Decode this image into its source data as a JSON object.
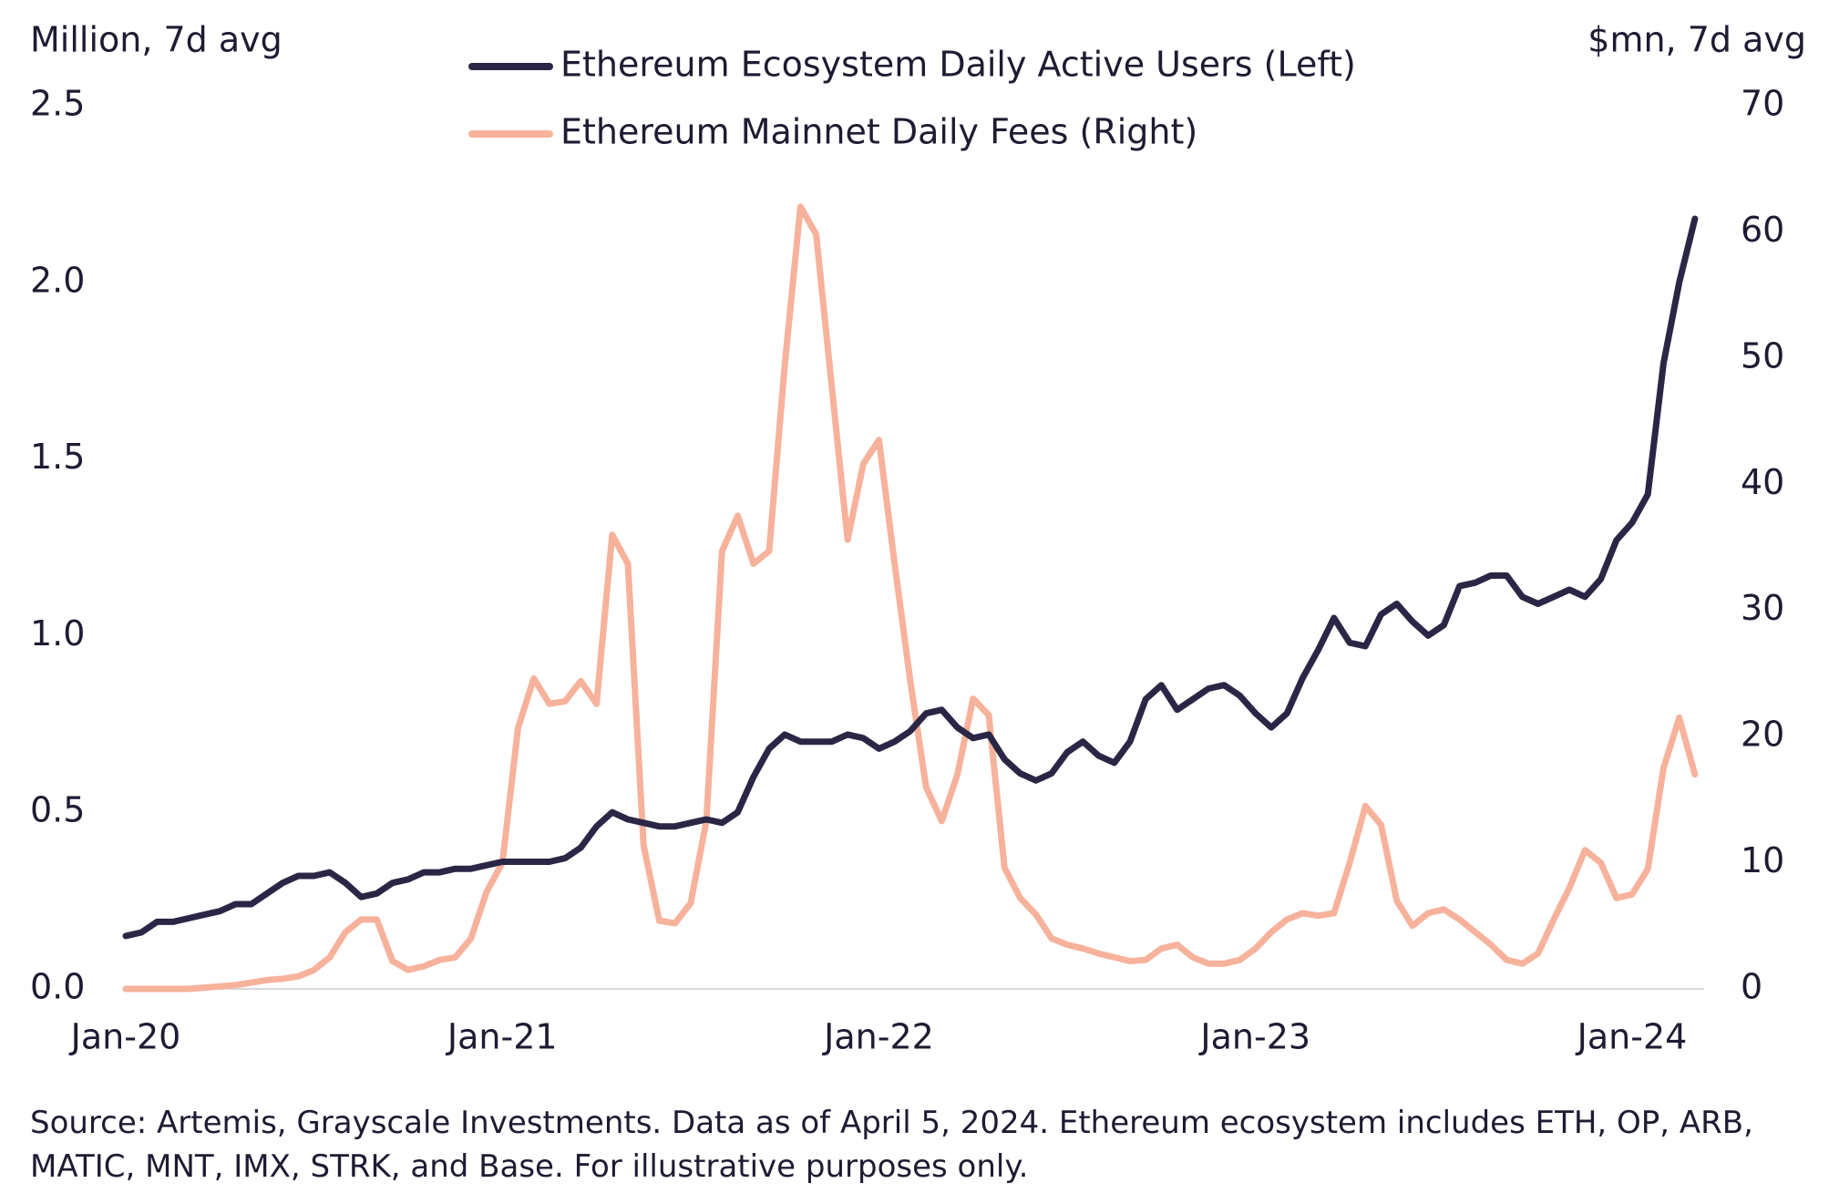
{
  "chart_data": {
    "type": "line",
    "y_label": "Million, 7d avg",
    "y2_label": "$mn, 7d avg",
    "note": "Source: Artemis, Grayscale Investments. Data as of April 5, 2024. Ethereum ecosystem includes ETH, OP, ARB, MATIC, MNT, IMX, STRK, and Base. For illustrative purposes only.",
    "categories": [
      "Jan-20",
      null,
      null,
      null,
      null,
      null,
      null,
      null,
      null,
      null,
      null,
      null,
      null,
      null,
      null,
      null,
      null,
      null,
      null,
      null,
      null,
      null,
      null,
      null,
      "Jan-21",
      null,
      null,
      null,
      null,
      null,
      null,
      null,
      null,
      null,
      null,
      null,
      null,
      null,
      null,
      null,
      null,
      null,
      null,
      null,
      null,
      null,
      null,
      null,
      "Jan-22",
      null,
      null,
      null,
      null,
      null,
      null,
      null,
      null,
      null,
      null,
      null,
      null,
      null,
      null,
      null,
      null,
      null,
      null,
      null,
      null,
      null,
      null,
      null,
      "Jan-23",
      null,
      null,
      null,
      null,
      null,
      null,
      null,
      null,
      null,
      null,
      null,
      null,
      null,
      null,
      null,
      null,
      null,
      null,
      null,
      null,
      null,
      null,
      null,
      "Jan-24",
      null,
      null,
      null,
      null
    ],
    "ylim": [
      0,
      2.5
    ],
    "yticks": [
      {
        "value": 0,
        "label": "0.0"
      },
      0.5,
      {
        "value": 1,
        "label": "1.0"
      },
      1.5,
      {
        "value": 2,
        "label": "2.0"
      },
      2.5
    ],
    "y2lim": [
      0,
      70
    ],
    "y2ticks": [
      0,
      10,
      20,
      30,
      40,
      50,
      60,
      70
    ],
    "series": [
      {
        "name": "Ethereum Ecosystem Daily Active Users (Left)",
        "color": "#2a2645",
        "values": [
          0.15,
          0.16,
          0.19,
          0.19,
          0.2,
          0.21,
          0.22,
          0.24,
          0.24,
          0.27,
          0.3,
          0.32,
          0.32,
          0.33,
          0.3,
          0.26,
          0.27,
          0.3,
          0.31,
          0.33,
          0.33,
          0.34,
          0.34,
          0.35,
          0.36,
          0.36,
          0.36,
          0.36,
          0.37,
          0.4,
          0.46,
          0.5,
          0.48,
          0.47,
          0.46,
          0.46,
          0.47,
          0.48,
          0.47,
          0.5,
          0.6,
          0.68,
          0.72,
          0.7,
          0.7,
          0.7,
          0.72,
          0.71,
          0.68,
          0.7,
          0.73,
          0.78,
          0.79,
          0.74,
          0.71,
          0.72,
          0.65,
          0.61,
          0.59,
          0.61,
          0.67,
          0.7,
          0.66,
          0.64,
          0.7,
          0.82,
          0.86,
          0.79,
          0.82,
          0.85,
          0.86,
          0.83,
          0.78,
          0.74,
          0.78,
          0.88,
          0.96,
          1.05,
          0.98,
          0.97,
          1.06,
          1.09,
          1.04,
          1.0,
          1.03,
          1.14,
          1.15,
          1.17,
          1.17,
          1.11,
          1.09,
          1.11,
          1.13,
          1.11,
          1.16,
          1.27,
          1.32,
          1.4,
          1.77,
          2.0,
          2.18
        ]
      },
      {
        "name": "Ethereum Mainnet Daily Fees (Right)",
        "color": "#f7b29c",
        "axis": "y2",
        "values": [
          0,
          0,
          0,
          0,
          0,
          0.1,
          0.2,
          0.3,
          0.5,
          0.7,
          0.8,
          1.0,
          1.5,
          2.5,
          4.5,
          5.5,
          5.5,
          2.2,
          1.5,
          1.8,
          2.3,
          2.5,
          4,
          7.7,
          10,
          20.7,
          24.6,
          22.6,
          22.8,
          24.4,
          22.6,
          36,
          33.7,
          11.4,
          5.4,
          5.2,
          6.8,
          13.3,
          34.7,
          37.5,
          33.7,
          34.7,
          49.5,
          62,
          59.8,
          47.7,
          35.6,
          41.6,
          43.5,
          33.7,
          24.4,
          16,
          13.3,
          17,
          23,
          21.7,
          9.6,
          7.2,
          5.9,
          4,
          3.5,
          3.2,
          2.8,
          2.5,
          2.2,
          2.3,
          3.2,
          3.5,
          2.5,
          2.0,
          2.0,
          2.3,
          3.2,
          4.5,
          5.5,
          6.0,
          5.8,
          6.0,
          10,
          14.5,
          13,
          7,
          5,
          6,
          6.3,
          5.5,
          4.5,
          3.5,
          2.3,
          2.0,
          2.8,
          5.5,
          8.0,
          11,
          10,
          7.2,
          7.5,
          9.5,
          17.5,
          21.5,
          17
        ]
      }
    ]
  }
}
